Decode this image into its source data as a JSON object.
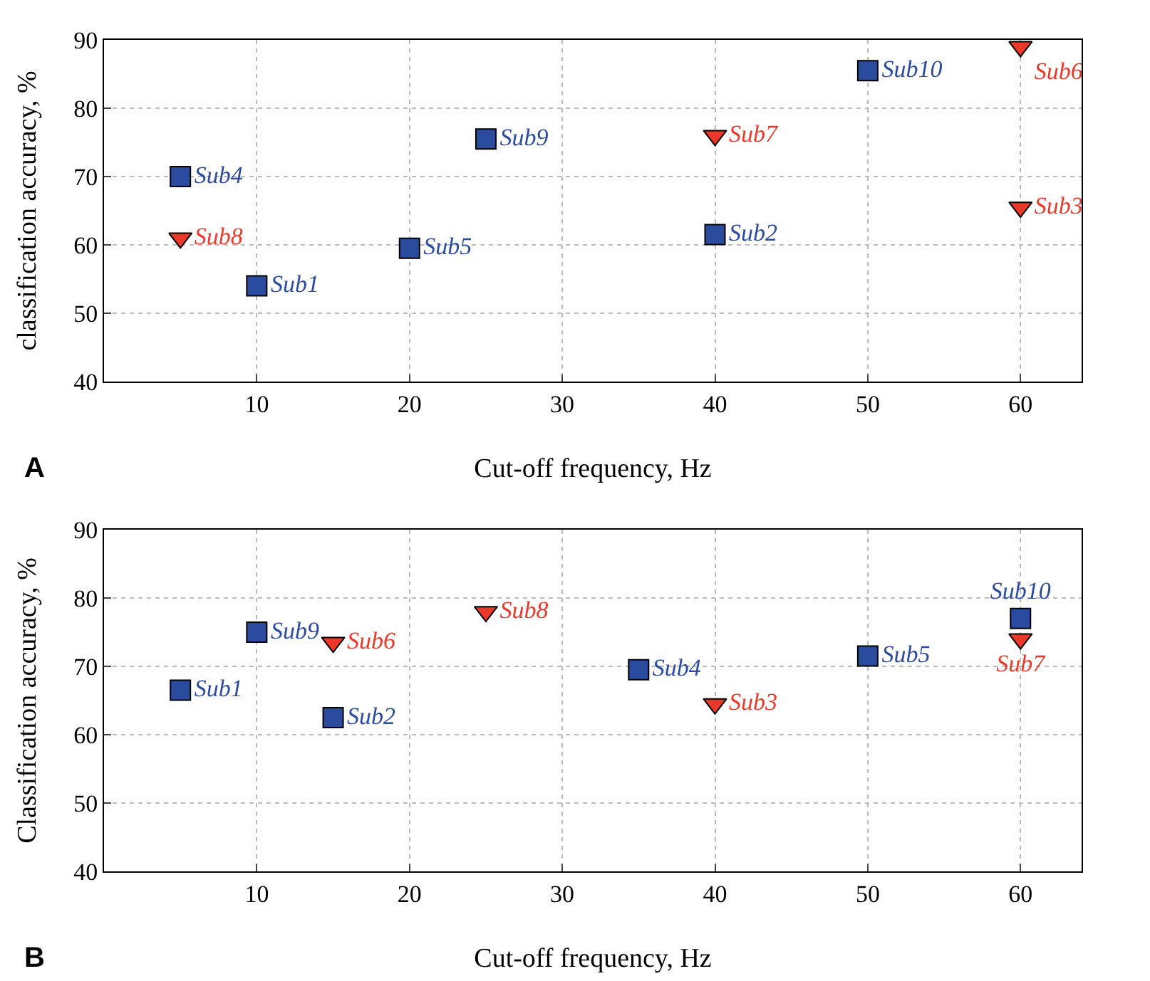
{
  "chart_data": [
    {
      "type": "scatter",
      "xlabel": "Cut-off frequency, Hz",
      "ylabel": "classification accuracy, %",
      "xlim": [
        0,
        64
      ],
      "ylim": [
        40,
        90
      ],
      "xticks": [
        10,
        20,
        30,
        40,
        50,
        60
      ],
      "yticks": [
        40,
        50,
        60,
        70,
        80,
        90
      ],
      "grid": true,
      "annotations": [
        "A"
      ],
      "series": [
        {
          "color": "#2b4c9e",
          "marker": "square",
          "x": [
            5,
            10,
            20,
            25,
            40,
            50
          ],
          "values": [
            70,
            54,
            59.5,
            75.5,
            61.5,
            85.5
          ],
          "value_labels": [
            "Sub4",
            "Sub1",
            "Sub5",
            "Sub9",
            "Sub2",
            "Sub10"
          ]
        },
        {
          "color": "#e8392b",
          "marker": "triangle",
          "x": [
            5,
            40,
            60,
            60
          ],
          "values": [
            61,
            76,
            89,
            65.5
          ],
          "value_labels": [
            "Sub8",
            "Sub7",
            "Sub6",
            "Sub3"
          ]
        }
      ]
    },
    {
      "type": "scatter",
      "xlabel": "Cut-off frequency, Hz",
      "ylabel": "Classification accuracy, %",
      "xlim": [
        0,
        64
      ],
      "ylim": [
        40,
        90
      ],
      "xticks": [
        10,
        20,
        30,
        40,
        50,
        60
      ],
      "yticks": [
        40,
        50,
        60,
        70,
        80,
        90
      ],
      "grid": true,
      "annotations": [
        "B"
      ],
      "series": [
        {
          "color": "#2b4c9e",
          "marker": "square",
          "x": [
            5,
            10,
            15,
            35,
            50,
            60
          ],
          "values": [
            66.5,
            75,
            62.5,
            69.5,
            71.5,
            77
          ],
          "value_labels": [
            "Sub1",
            "Sub9",
            "Sub2",
            "Sub4",
            "Sub5",
            "Sub10"
          ]
        },
        {
          "color": "#e8392b",
          "marker": "triangle",
          "x": [
            15,
            25,
            40,
            60
          ],
          "values": [
            73.5,
            78,
            64.5,
            74
          ],
          "value_labels": [
            "Sub6",
            "Sub8",
            "Sub3",
            "Sub7"
          ]
        }
      ]
    }
  ]
}
